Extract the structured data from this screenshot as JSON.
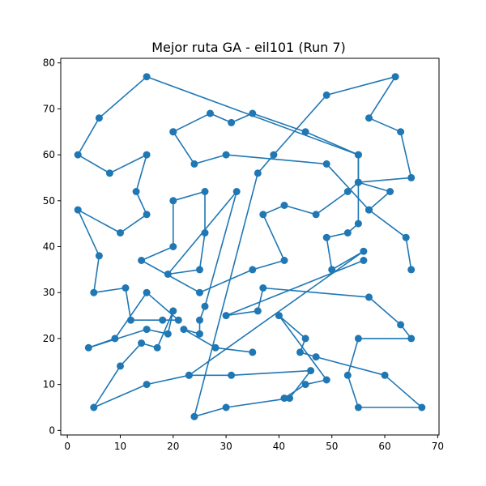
{
  "chart_data": {
    "type": "line",
    "title": "Mejor ruta GA - eil101 (Run 7)",
    "xlabel": "",
    "ylabel": "",
    "xlim": [
      -1.25,
      70.25
    ],
    "ylim": [
      -1.0,
      81.0
    ],
    "xticks": [
      0,
      10,
      20,
      30,
      40,
      50,
      60,
      70
    ],
    "yticks": [
      0,
      10,
      20,
      30,
      40,
      50,
      60,
      70,
      80
    ],
    "grid": false,
    "series": [
      {
        "color": "#1f77b4",
        "marker": "circle",
        "points": [
          [
            35,
            17
          ],
          [
            28,
            18
          ],
          [
            22,
            22
          ],
          [
            25,
            21
          ],
          [
            25,
            24
          ],
          [
            26,
            27
          ],
          [
            32,
            52
          ],
          [
            19,
            34
          ],
          [
            25,
            35
          ],
          [
            26,
            43
          ],
          [
            26,
            52
          ],
          [
            20,
            50
          ],
          [
            20,
            40
          ],
          [
            14,
            37
          ],
          [
            25,
            30
          ],
          [
            35,
            35
          ],
          [
            41,
            37
          ],
          [
            37,
            47
          ],
          [
            41,
            49
          ],
          [
            47,
            47
          ],
          [
            53,
            52
          ],
          [
            55,
            54
          ],
          [
            65,
            55
          ],
          [
            63,
            65
          ],
          [
            57,
            68
          ],
          [
            62,
            77
          ],
          [
            49,
            73
          ],
          [
            39,
            60
          ],
          [
            36,
            56
          ],
          [
            24,
            3
          ],
          [
            30,
            5
          ],
          [
            42,
            7
          ],
          [
            46,
            13
          ],
          [
            31,
            12
          ],
          [
            23,
            12
          ],
          [
            15,
            10
          ],
          [
            5,
            5
          ],
          [
            10,
            14
          ],
          [
            14,
            19
          ],
          [
            17,
            18
          ],
          [
            20,
            26
          ],
          [
            19,
            21
          ],
          [
            15,
            22
          ],
          [
            4,
            18
          ],
          [
            9,
            20
          ],
          [
            15,
            30
          ],
          [
            21,
            24
          ],
          [
            18,
            24
          ],
          [
            12,
            24
          ],
          [
            11,
            31
          ],
          [
            5,
            30
          ],
          [
            6,
            38
          ],
          [
            2,
            48
          ],
          [
            10,
            43
          ],
          [
            15,
            47
          ],
          [
            13,
            52
          ],
          [
            15,
            60
          ],
          [
            8,
            56
          ],
          [
            2,
            60
          ],
          [
            6,
            68
          ],
          [
            15,
            77
          ],
          [
            55,
            60
          ],
          [
            55,
            45
          ],
          [
            53,
            43
          ],
          [
            49,
            42
          ],
          [
            50,
            35
          ],
          [
            56,
            39
          ],
          [
            23,
            12
          ]
        ]
      },
      {
        "color": "#1f77b4",
        "marker": "circle",
        "points": [
          [
            56,
            37
          ],
          [
            30,
            25
          ],
          [
            36,
            26
          ],
          [
            37,
            31
          ],
          [
            57,
            29
          ],
          [
            63,
            23
          ],
          [
            65,
            20
          ],
          [
            55,
            20
          ],
          [
            53,
            12
          ],
          [
            55,
            5
          ],
          [
            67,
            5
          ],
          [
            60,
            12
          ],
          [
            47,
            16
          ],
          [
            44,
            17
          ],
          [
            45,
            20
          ],
          [
            40,
            25
          ],
          [
            49,
            11
          ],
          [
            45,
            10
          ],
          [
            41,
            7
          ]
        ]
      },
      {
        "color": "#1f77b4",
        "marker": "circle",
        "points": [
          [
            20,
            65
          ],
          [
            27,
            69
          ],
          [
            31,
            67
          ],
          [
            35,
            69
          ],
          [
            45,
            65
          ],
          [
            55,
            60
          ],
          [
            55,
            54
          ],
          [
            61,
            52
          ],
          [
            57,
            48
          ],
          [
            49,
            58
          ],
          [
            30,
            60
          ],
          [
            24,
            58
          ],
          [
            20,
            65
          ]
        ]
      },
      {
        "color": "#1f77b4",
        "marker": "circle",
        "points": [
          [
            57,
            48
          ],
          [
            64,
            42
          ],
          [
            65,
            35
          ]
        ]
      }
    ]
  }
}
